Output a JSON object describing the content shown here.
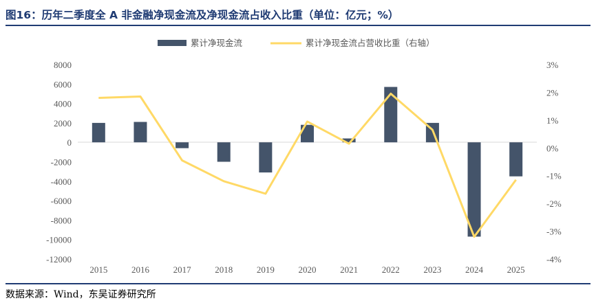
{
  "title": "图16：历年二季度全 A 非金融净现金流及净现金流占收入比重（单位：亿元；%）",
  "source": "数据来源：Wind，东吴证券研究所",
  "chart_data": {
    "type": "bar+line",
    "categories": [
      "2015",
      "2016",
      "2017",
      "2018",
      "2019",
      "2020",
      "2021",
      "2022",
      "2023",
      "2024",
      "2025"
    ],
    "series": [
      {
        "name": "累计净现金流",
        "type": "bar",
        "axis": "left",
        "color": "#44546a",
        "values": [
          2000,
          2100,
          -600,
          -2000,
          -3100,
          1800,
          400,
          5700,
          2000,
          -9700,
          -3500
        ]
      },
      {
        "name": "累计净现金流占营收比重（右轴）",
        "type": "line",
        "axis": "right",
        "color": "#ffd966",
        "values": [
          1.8,
          1.85,
          -0.45,
          -1.2,
          -1.65,
          0.95,
          0.15,
          1.95,
          0.65,
          -3.2,
          -1.15
        ]
      }
    ],
    "y_left": {
      "range": [
        -12000,
        8000
      ],
      "ticks": [
        "8000",
        "6000",
        "4000",
        "2000",
        "0",
        "-2000",
        "-4000",
        "-6000",
        "-8000",
        "-10000",
        "-12000"
      ]
    },
    "y_right": {
      "range": [
        -4,
        3
      ],
      "ticks": [
        "3%",
        "2%",
        "1%",
        "0%",
        "-1%",
        "-2%",
        "-3%",
        "-4%"
      ]
    },
    "grid": false,
    "legend": "top-center"
  }
}
